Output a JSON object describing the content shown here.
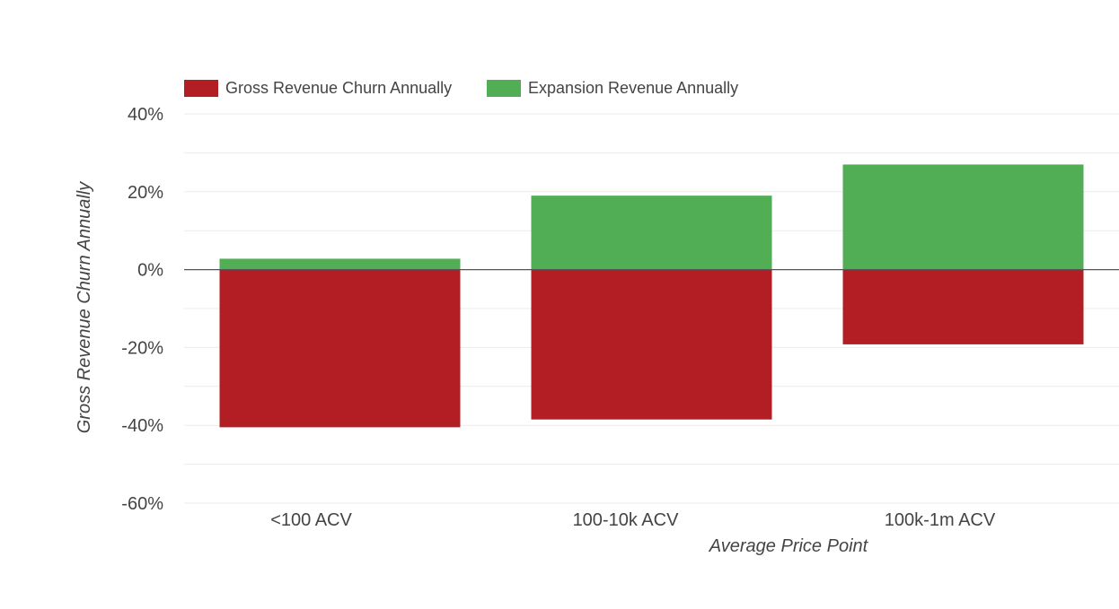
{
  "chart_data": {
    "type": "bar",
    "stacked": true,
    "title": "",
    "categories": [
      "<100 ACV",
      "100-10k ACV",
      "100k-1m ACV"
    ],
    "series": [
      {
        "name": "Gross Revenue Churn Annually",
        "values": [
          -40.5,
          -38.5,
          -19.2
        ],
        "color": "#b31d24"
      },
      {
        "name": "Expansion Revenue Annually",
        "values": [
          2.8,
          19.0,
          27.0
        ],
        "color": "#51ae55"
      }
    ],
    "xlabel": "Average Price Point",
    "ylabel": "Gross Revenue Churn Annually",
    "ylim": [
      -60,
      40
    ],
    "yticks": [
      {
        "value": 40,
        "label": "40%"
      },
      {
        "value": 20,
        "label": "20%"
      },
      {
        "value": 0,
        "label": "0%"
      },
      {
        "value": -20,
        "label": "-20%"
      },
      {
        "value": -40,
        "label": "-40%"
      },
      {
        "value": -60,
        "label": "-60%"
      }
    ],
    "minor_grid_step": 10,
    "grid": true,
    "legend_position": "top-left",
    "zero_line_color": "#555555",
    "grid_color": "#ebebeb",
    "text_color": "#444444"
  }
}
